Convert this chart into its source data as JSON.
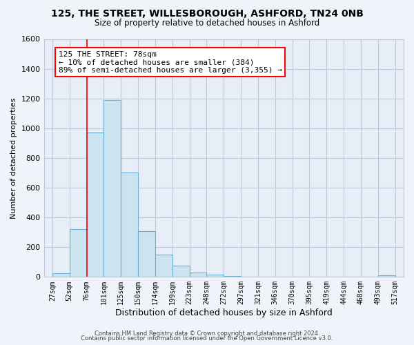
{
  "title1": "125, THE STREET, WILLESBOROUGH, ASHFORD, TN24 0NB",
  "title2": "Size of property relative to detached houses in Ashford",
  "xlabel": "Distribution of detached houses by size in Ashford",
  "ylabel": "Number of detached properties",
  "footnote1": "Contains HM Land Registry data © Crown copyright and database right 2024.",
  "footnote2": "Contains public sector information licensed under the Open Government Licence v3.0.",
  "annotation_title": "125 THE STREET: 78sqm",
  "annotation_line1": "← 10% of detached houses are smaller (384)",
  "annotation_line2": "89% of semi-detached houses are larger (3,355) →",
  "bar_heights": [
    25,
    320,
    970,
    1190,
    700,
    310,
    150,
    75,
    30,
    15,
    5,
    2,
    1,
    0,
    0,
    0,
    0,
    0,
    0,
    10
  ],
  "categories": [
    "27sqm",
    "52sqm",
    "76sqm",
    "101sqm",
    "125sqm",
    "150sqm",
    "174sqm",
    "199sqm",
    "223sqm",
    "248sqm",
    "272sqm",
    "297sqm",
    "321sqm",
    "346sqm",
    "370sqm",
    "395sqm",
    "419sqm",
    "444sqm",
    "468sqm",
    "493sqm",
    "517sqm"
  ],
  "bar_color": "#cce4f0",
  "bar_edge_color": "#6aaed6",
  "ylim": [
    0,
    1600
  ],
  "yticks": [
    0,
    200,
    400,
    600,
    800,
    1000,
    1200,
    1400,
    1600
  ],
  "background_color": "#f0f4fa",
  "plot_bg_color": "#e8eef8",
  "grid_color": "#c0c8d8"
}
